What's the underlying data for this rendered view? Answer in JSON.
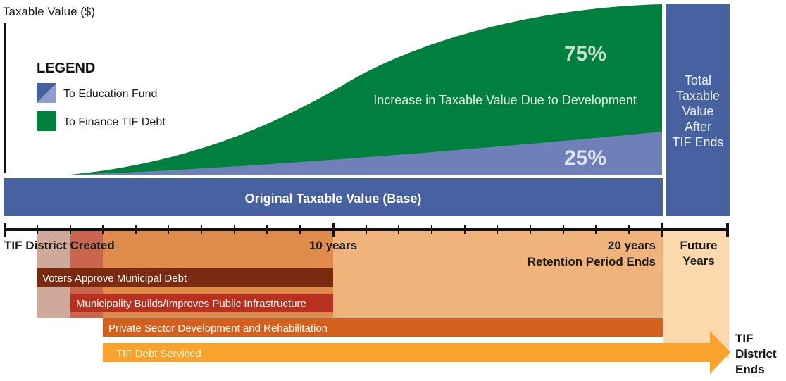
{
  "y_axis_label": "Taxable Value ($)",
  "legend": {
    "title": "LEGEND",
    "items": [
      {
        "label": "To Education Fund",
        "color": "#6f7fb8"
      },
      {
        "label": "To Finance TIF Debt",
        "color": "#00803e"
      }
    ]
  },
  "areas": {
    "increase_label": "Increase in Taxable Value Due to Development",
    "debt_share": "75%",
    "education_share": "25%",
    "base_label": "Original Taxable Value (Base)",
    "after_tif_label": [
      "Total",
      "Taxable",
      "Value",
      "After",
      "TIF Ends"
    ]
  },
  "timeline": {
    "created_label": "TIF District Created",
    "mid_label": "10 years",
    "end_label_line1": "20 years",
    "end_label_line2": "Retention Period Ends",
    "future_line1": "Future",
    "future_line2": "Years"
  },
  "bars": [
    {
      "label": "Voters Approve Municipal Debt",
      "color": "#7a2a0e"
    },
    {
      "label": "Municipality Builds/Improves Public Infrastructure",
      "color": "#b8311f"
    },
    {
      "label": "Private Sector Development and Rehabilitation",
      "color": "#d4601e"
    },
    {
      "label": "TIF Debt Serviced",
      "color": "#f7a32c"
    }
  ],
  "end_label": [
    "TIF",
    "District",
    "Ends"
  ],
  "colors": {
    "base_blue": "#4660a0",
    "debt_green": "#00803e",
    "education_blue": "#6f7fb8",
    "phase_dark_orange": "#df8b4c",
    "phase_light_orange": "#f1b37c",
    "future_peach": "#fcd9ad"
  }
}
